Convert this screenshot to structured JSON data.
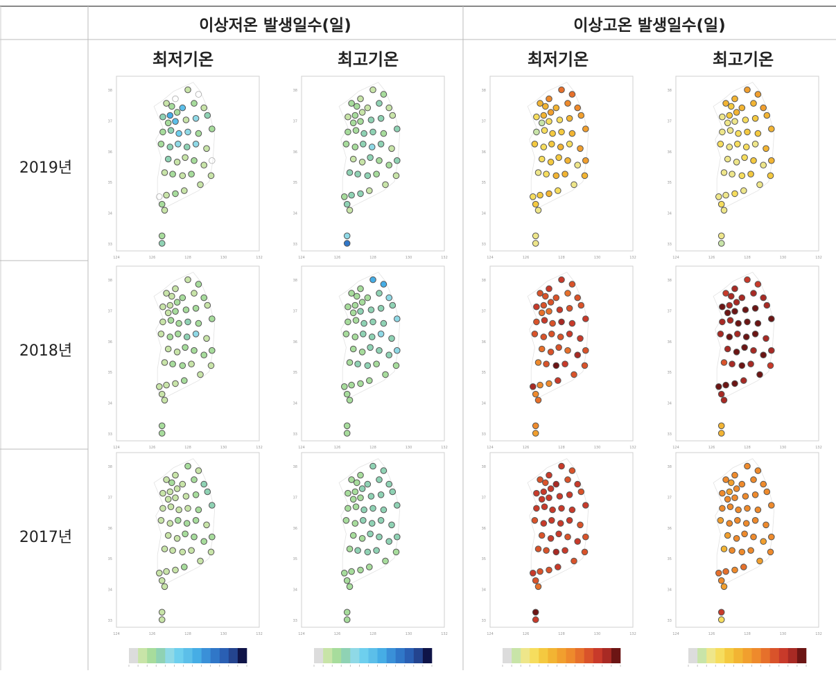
{
  "header": {
    "group_cold": "이상저온 발생일수(일)",
    "group_hot": "이상고온 발생일수(일)",
    "cols": [
      "최저기온",
      "최고기온",
      "최저기온",
      "최고기온"
    ]
  },
  "rows": [
    "2019년",
    "2018년",
    "2017년"
  ],
  "chart_data": {
    "type": "scatter",
    "description_free": true,
    "stations": [
      {
        "lon": 126.8,
        "lat": 37.9
      },
      {
        "lon": 127.3,
        "lat": 38.05
      },
      {
        "lon": 128.0,
        "lat": 38.35
      },
      {
        "lon": 128.6,
        "lat": 38.2
      },
      {
        "lon": 127.1,
        "lat": 37.8
      },
      {
        "lon": 126.6,
        "lat": 37.45
      },
      {
        "lon": 127.0,
        "lat": 37.5
      },
      {
        "lon": 127.4,
        "lat": 37.6
      },
      {
        "lon": 127.7,
        "lat": 37.75
      },
      {
        "lon": 128.35,
        "lat": 37.9
      },
      {
        "lon": 128.9,
        "lat": 37.75
      },
      {
        "lon": 126.9,
        "lat": 37.25
      },
      {
        "lon": 127.3,
        "lat": 37.3
      },
      {
        "lon": 127.9,
        "lat": 37.35
      },
      {
        "lon": 128.45,
        "lat": 37.4
      },
      {
        "lon": 129.1,
        "lat": 37.5
      },
      {
        "lon": 126.6,
        "lat": 36.95
      },
      {
        "lon": 127.05,
        "lat": 37.0
      },
      {
        "lon": 127.5,
        "lat": 36.9
      },
      {
        "lon": 128.0,
        "lat": 36.95
      },
      {
        "lon": 128.6,
        "lat": 36.9
      },
      {
        "lon": 129.35,
        "lat": 37.05
      },
      {
        "lon": 126.5,
        "lat": 36.55
      },
      {
        "lon": 127.0,
        "lat": 36.45
      },
      {
        "lon": 127.45,
        "lat": 36.55
      },
      {
        "lon": 127.95,
        "lat": 36.45
      },
      {
        "lon": 128.45,
        "lat": 36.55
      },
      {
        "lon": 129.05,
        "lat": 36.4
      },
      {
        "lon": 126.9,
        "lat": 36.05
      },
      {
        "lon": 127.4,
        "lat": 35.95
      },
      {
        "lon": 127.85,
        "lat": 36.1
      },
      {
        "lon": 128.35,
        "lat": 36.0
      },
      {
        "lon": 128.9,
        "lat": 35.85
      },
      {
        "lon": 129.35,
        "lat": 36.0
      },
      {
        "lon": 126.7,
        "lat": 35.6
      },
      {
        "lon": 127.15,
        "lat": 35.55
      },
      {
        "lon": 127.7,
        "lat": 35.5
      },
      {
        "lon": 128.2,
        "lat": 35.55
      },
      {
        "lon": 128.7,
        "lat": 35.2
      },
      {
        "lon": 129.3,
        "lat": 35.5
      },
      {
        "lon": 126.4,
        "lat": 34.8
      },
      {
        "lon": 126.8,
        "lat": 34.85
      },
      {
        "lon": 127.3,
        "lat": 34.9
      },
      {
        "lon": 127.8,
        "lat": 35.0
      },
      {
        "lon": 126.55,
        "lat": 34.55
      },
      {
        "lon": 126.7,
        "lat": 34.35
      },
      {
        "lon": 126.55,
        "lat": 33.5
      },
      {
        "lon": 126.55,
        "lat": 33.25
      }
    ],
    "xlim": [
      124,
      132
    ],
    "ylim": [
      33,
      38.8
    ],
    "x_ticks": [
      "124",
      "126",
      "128",
      "130",
      "132"
    ],
    "y_ticks": [
      "33",
      "34",
      "35",
      "36",
      "37",
      "38"
    ],
    "panels": [
      {
        "row": 0,
        "col": 0,
        "palette": "cold",
        "values": [
          1,
          0,
          1,
          0,
          2,
          3,
          7,
          2,
          6,
          2,
          1,
          2,
          6,
          1,
          4,
          3,
          2,
          3,
          5,
          4,
          2,
          2,
          2,
          3,
          4,
          3,
          4,
          1,
          3,
          1,
          1,
          2,
          1,
          0,
          1,
          2,
          1,
          2,
          1,
          1,
          0,
          1,
          2,
          1,
          2,
          1,
          2,
          3
        ]
      },
      {
        "row": 0,
        "col": 1,
        "palette": "cold",
        "values": [
          2,
          1,
          1,
          2,
          2,
          1,
          2,
          1,
          1,
          3,
          1,
          2,
          2,
          3,
          3,
          1,
          2,
          2,
          3,
          3,
          2,
          3,
          2,
          2,
          3,
          4,
          3,
          1,
          1,
          1,
          3,
          2,
          2,
          3,
          3,
          3,
          3,
          2,
          1,
          1,
          2,
          3,
          3,
          1,
          3,
          1,
          4,
          9
        ]
      },
      {
        "row": 0,
        "col": 2,
        "palette": "hot",
        "values": [
          5,
          7,
          8,
          8,
          5,
          3,
          5,
          6,
          5,
          7,
          7,
          1,
          3,
          3,
          5,
          6,
          1,
          3,
          4,
          4,
          5,
          6,
          4,
          3,
          4,
          5,
          3,
          6,
          3,
          4,
          4,
          5,
          2,
          6,
          2,
          3,
          5,
          5,
          2,
          5,
          3,
          4,
          5,
          3,
          4,
          2,
          2,
          2
        ]
      },
      {
        "row": 0,
        "col": 3,
        "palette": "hot",
        "values": [
          5,
          5,
          6,
          6,
          4,
          2,
          4,
          5,
          5,
          5,
          6,
          2,
          2,
          3,
          4,
          5,
          2,
          2,
          3,
          4,
          4,
          5,
          3,
          2,
          3,
          3,
          2,
          5,
          2,
          2,
          3,
          4,
          2,
          5,
          2,
          2,
          3,
          4,
          2,
          4,
          2,
          2,
          3,
          2,
          3,
          2,
          2,
          1
        ]
      },
      {
        "row": 1,
        "col": 0,
        "palette": "cold",
        "values": [
          1,
          1,
          1,
          2,
          1,
          1,
          1,
          2,
          2,
          1,
          2,
          1,
          2,
          2,
          2,
          1,
          1,
          2,
          2,
          3,
          2,
          2,
          1,
          2,
          2,
          3,
          4,
          1,
          1,
          1,
          2,
          2,
          2,
          2,
          1,
          2,
          2,
          1,
          1,
          1,
          1,
          1,
          1,
          2,
          1,
          1,
          2,
          2
        ]
      },
      {
        "row": 1,
        "col": 1,
        "palette": "cold",
        "values": [
          2,
          2,
          7,
          7,
          2,
          2,
          2,
          2,
          2,
          3,
          4,
          2,
          3,
          3,
          3,
          3,
          2,
          2,
          3,
          3,
          3,
          4,
          2,
          2,
          3,
          3,
          4,
          3,
          2,
          2,
          3,
          3,
          3,
          4,
          2,
          3,
          3,
          2,
          2,
          2,
          2,
          2,
          2,
          2,
          2,
          2,
          2,
          2
        ]
      },
      {
        "row": 1,
        "col": 2,
        "palette": "hot",
        "values": [
          9,
          10,
          10,
          9,
          9,
          10,
          9,
          9,
          9,
          8,
          9,
          8,
          8,
          10,
          9,
          9,
          9,
          10,
          9,
          11,
          10,
          10,
          9,
          9,
          9,
          9,
          10,
          10,
          8,
          9,
          9,
          8,
          11,
          9,
          7,
          9,
          12,
          10,
          9,
          9,
          11,
          7,
          7,
          10,
          7,
          8,
          7,
          6
        ]
      },
      {
        "row": 1,
        "col": 3,
        "palette": "hot",
        "values": [
          10,
          11,
          10,
          10,
          11,
          12,
          11,
          11,
          11,
          11,
          11,
          12,
          12,
          12,
          12,
          11,
          11,
          11,
          12,
          12,
          12,
          12,
          11,
          12,
          11,
          12,
          12,
          11,
          11,
          12,
          12,
          11,
          12,
          11,
          9,
          11,
          12,
          11,
          12,
          10,
          12,
          12,
          12,
          11,
          11,
          11,
          5,
          5
        ]
      },
      {
        "row": 2,
        "col": 0,
        "palette": "cold",
        "values": [
          1,
          1,
          2,
          1,
          2,
          1,
          1,
          1,
          1,
          2,
          3,
          1,
          1,
          1,
          2,
          3,
          1,
          1,
          1,
          1,
          2,
          3,
          1,
          1,
          2,
          2,
          2,
          1,
          1,
          1,
          2,
          2,
          2,
          2,
          1,
          1,
          1,
          1,
          1,
          1,
          1,
          1,
          1,
          2,
          1,
          1,
          1,
          1
        ]
      },
      {
        "row": 2,
        "col": 1,
        "palette": "cold",
        "values": [
          2,
          2,
          3,
          3,
          2,
          2,
          2,
          3,
          3,
          3,
          3,
          2,
          2,
          3,
          3,
          3,
          2,
          2,
          3,
          3,
          3,
          3,
          2,
          2,
          3,
          3,
          3,
          3,
          2,
          2,
          3,
          3,
          3,
          3,
          2,
          3,
          3,
          3,
          2,
          2,
          2,
          2,
          2,
          2,
          2,
          2,
          2,
          2
        ]
      },
      {
        "row": 2,
        "col": 2,
        "palette": "hot",
        "values": [
          9,
          10,
          10,
          9,
          9,
          10,
          10,
          10,
          11,
          9,
          10,
          10,
          10,
          10,
          10,
          9,
          10,
          10,
          10,
          10,
          10,
          10,
          9,
          10,
          10,
          10,
          10,
          9,
          9,
          10,
          10,
          9,
          10,
          9,
          9,
          9,
          11,
          10,
          9,
          9,
          10,
          9,
          9,
          10,
          9,
          8,
          12,
          10
        ]
      },
      {
        "row": 2,
        "col": 3,
        "palette": "hot",
        "values": [
          7,
          7,
          7,
          7,
          6,
          7,
          6,
          7,
          7,
          7,
          7,
          7,
          7,
          7,
          7,
          7,
          7,
          7,
          7,
          7,
          7,
          7,
          6,
          7,
          7,
          7,
          7,
          7,
          6,
          7,
          7,
          7,
          6,
          7,
          5,
          7,
          7,
          7,
          6,
          7,
          8,
          8,
          7,
          8,
          7,
          6,
          10,
          3
        ]
      }
    ],
    "palettes": {
      "cold": [
        "#dcdcdc",
        "#c8e4a8",
        "#a7dc9c",
        "#8fd2b4",
        "#8fd9e6",
        "#6ecfee",
        "#5cbfe9",
        "#46ade5",
        "#3a90d8",
        "#3077c8",
        "#2a5fb3",
        "#24448f",
        "#0f1448"
      ],
      "hot": [
        "#dcdcdc",
        "#c8e4a8",
        "#eee68a",
        "#f6dd5e",
        "#f4c940",
        "#f2b433",
        "#f19f2e",
        "#ee8a2c",
        "#e6702b",
        "#d9532a",
        "#c83a2a",
        "#a82a24",
        "#6c1514"
      ]
    }
  }
}
